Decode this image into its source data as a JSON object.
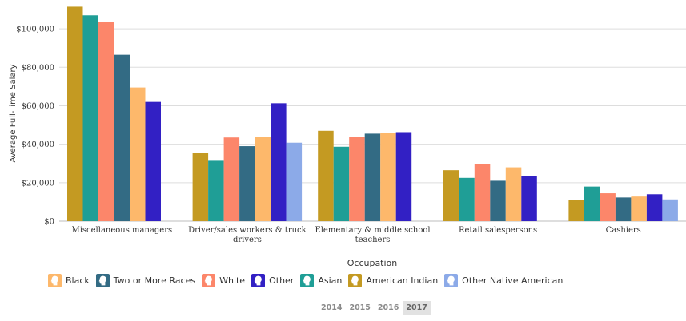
{
  "chart_data": {
    "type": "bar",
    "xlabel": "Occupation",
    "ylabel": "Average Full-Time Salary",
    "ylim": [
      0,
      115000
    ],
    "yticks": [
      0,
      20000,
      40000,
      60000,
      80000,
      100000
    ],
    "ytick_labels": [
      "$0",
      "$20,000",
      "$40,000",
      "$60,000",
      "$80,000",
      "$100,000"
    ],
    "categories": [
      [
        "Miscellaneous managers"
      ],
      [
        "Driver/sales workers & truck",
        "drivers"
      ],
      [
        "Elementary & middle school",
        "teachers"
      ],
      [
        "Retail salespersons"
      ],
      [
        "Cashiers"
      ]
    ],
    "grid": true,
    "series": [
      {
        "name": "American Indian",
        "color": "#c49a22",
        "values": [
          111500,
          35500,
          47000,
          26500,
          11000
        ]
      },
      {
        "name": "Asian",
        "color": "#1f9e96",
        "values": [
          107000,
          31800,
          38700,
          22500,
          18000
        ]
      },
      {
        "name": "White",
        "color": "#fc866a",
        "values": [
          103500,
          43500,
          44000,
          29800,
          14500
        ]
      },
      {
        "name": "Two or More Races",
        "color": "#336b84",
        "values": [
          86500,
          39000,
          45500,
          21000,
          12300
        ]
      },
      {
        "name": "Black",
        "color": "#fdb86b",
        "values": [
          69500,
          44000,
          46000,
          28000,
          12800
        ]
      },
      {
        "name": "Other",
        "color": "#3220c4",
        "values": [
          62000,
          61300,
          46300,
          23300,
          14000
        ]
      },
      {
        "name": "Other Native American",
        "color": "#8caae8",
        "values": [
          null,
          40800,
          null,
          null,
          11300
        ]
      }
    ]
  },
  "legend": [
    {
      "label": "Black",
      "color": "#fdb86b",
      "icon": "person-silhouette-icon"
    },
    {
      "label": "Two or More Races",
      "color": "#336b84",
      "icon": "person-silhouette-icon"
    },
    {
      "label": "White",
      "color": "#fc866a",
      "icon": "person-silhouette-icon"
    },
    {
      "label": "Other",
      "color": "#3220c4",
      "icon": "person-silhouette-icon"
    },
    {
      "label": "Asian",
      "color": "#1f9e96",
      "icon": "person-silhouette-icon"
    },
    {
      "label": "American Indian",
      "color": "#c49a22",
      "icon": "person-silhouette-icon"
    },
    {
      "label": "Other Native American",
      "color": "#8caae8",
      "icon": "person-silhouette-icon"
    }
  ],
  "years": {
    "items": [
      "2014",
      "2015",
      "2016",
      "2017"
    ],
    "selected": "2017"
  }
}
